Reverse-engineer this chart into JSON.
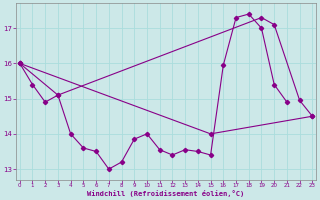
{
  "xlabel": "Windchill (Refroidissement éolien,°C)",
  "background_color": "#cce8e8",
  "grid_color": "#b0d8d8",
  "line_color": "#880088",
  "line1_x": [
    0,
    1,
    2,
    3,
    4,
    5,
    6,
    7,
    8,
    9,
    10,
    11,
    12,
    13,
    14,
    15,
    16,
    17,
    18,
    19,
    20,
    21
  ],
  "line1_y": [
    16.0,
    15.4,
    14.9,
    15.1,
    14.0,
    13.6,
    13.5,
    13.0,
    13.2,
    13.85,
    14.0,
    13.55,
    13.4,
    13.55,
    13.5,
    13.4,
    15.95,
    17.3,
    17.4,
    17.0,
    15.4,
    14.9
  ],
  "line2_x": [
    0,
    3,
    19,
    20,
    22,
    23
  ],
  "line2_y": [
    16.0,
    15.1,
    17.3,
    17.1,
    14.95,
    14.5
  ],
  "line3_x": [
    0,
    15,
    23
  ],
  "line3_y": [
    16.0,
    14.0,
    14.5
  ],
  "ylim": [
    12.7,
    17.7
  ],
  "xlim": [
    -0.3,
    23.3
  ],
  "yticks": [
    13,
    14,
    15,
    16,
    17
  ],
  "xticks": [
    0,
    1,
    2,
    3,
    4,
    5,
    6,
    7,
    8,
    9,
    10,
    11,
    12,
    13,
    14,
    15,
    16,
    17,
    18,
    19,
    20,
    21,
    22,
    23
  ]
}
